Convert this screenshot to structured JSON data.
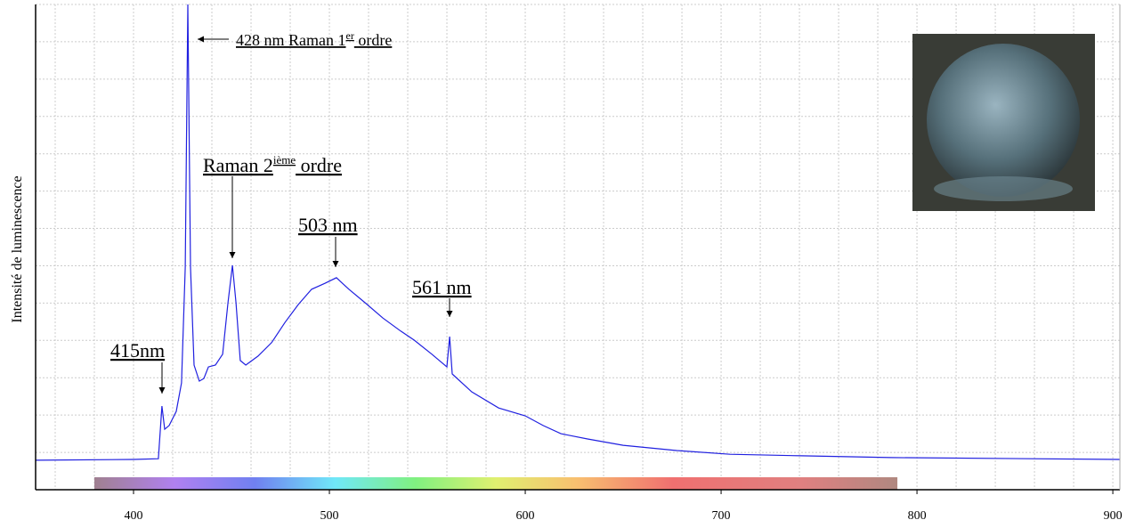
{
  "chart_data": {
    "type": "line",
    "ylabel": "Intensité de luminescence",
    "xlim": [
      350,
      903.6
    ],
    "ylim": [
      0,
      13
    ],
    "xticks": [
      400,
      500,
      600,
      700,
      800,
      900
    ],
    "xgrid": [
      360,
      380,
      400,
      420,
      440,
      460,
      480,
      500,
      520,
      540,
      560,
      580,
      600,
      620,
      640,
      660,
      680,
      700,
      720,
      740,
      760,
      780,
      800,
      820,
      840,
      860,
      880,
      900
    ],
    "ygrid": [
      1,
      2,
      3,
      4,
      5,
      6,
      7,
      8,
      9,
      10,
      11,
      12,
      13
    ],
    "grid": true,
    "spectrum_bar": [
      380,
      790
    ],
    "series": [
      {
        "color": "#2020e0",
        "x": [
          350,
          400,
          412.7,
          414.5,
          415.9,
          418.2,
          421.8,
          424.5,
          426.4,
          427.7,
          429.1,
          430.9,
          433.6,
          435.9,
          438.2,
          441.8,
          445.5,
          448.2,
          450.5,
          452.3,
          454.5,
          457.3,
          463.6,
          470.5,
          477.3,
          484.1,
          490.9,
          497.7,
          503.6,
          510,
          518.2,
          527.3,
          536.4,
          543.2,
          552.3,
          560,
          561.4,
          562.7,
          572.7,
          586.4,
          600,
          609.1,
          618.2,
          631.8,
          650,
          677.3,
          704.5,
          740.9,
          786.4,
          903.6
        ],
        "values": [
          0.79,
          0.81,
          0.83,
          2.24,
          1.62,
          1.72,
          2.1,
          2.86,
          5.96,
          13,
          5.96,
          3.34,
          2.91,
          2.98,
          3.29,
          3.34,
          3.63,
          5.01,
          6.01,
          5.01,
          3.46,
          3.34,
          3.58,
          3.94,
          4.48,
          4.96,
          5.37,
          5.53,
          5.68,
          5.37,
          5.01,
          4.6,
          4.25,
          4.01,
          3.63,
          3.29,
          4.1,
          3.1,
          2.62,
          2.19,
          1.98,
          1.72,
          1.5,
          1.36,
          1.19,
          1.05,
          0.95,
          0.91,
          0.86,
          0.81
        ]
      }
    ],
    "annotations": [
      {
        "text": "428 nm Raman 1",
        "sup": "er",
        "rest": " ordre"
      },
      {
        "text": "Raman 2",
        "sup": "ième",
        "rest": " ordre"
      },
      {
        "text": "503 nm"
      },
      {
        "text": "561 nm"
      },
      {
        "text": "415nm"
      }
    ]
  }
}
